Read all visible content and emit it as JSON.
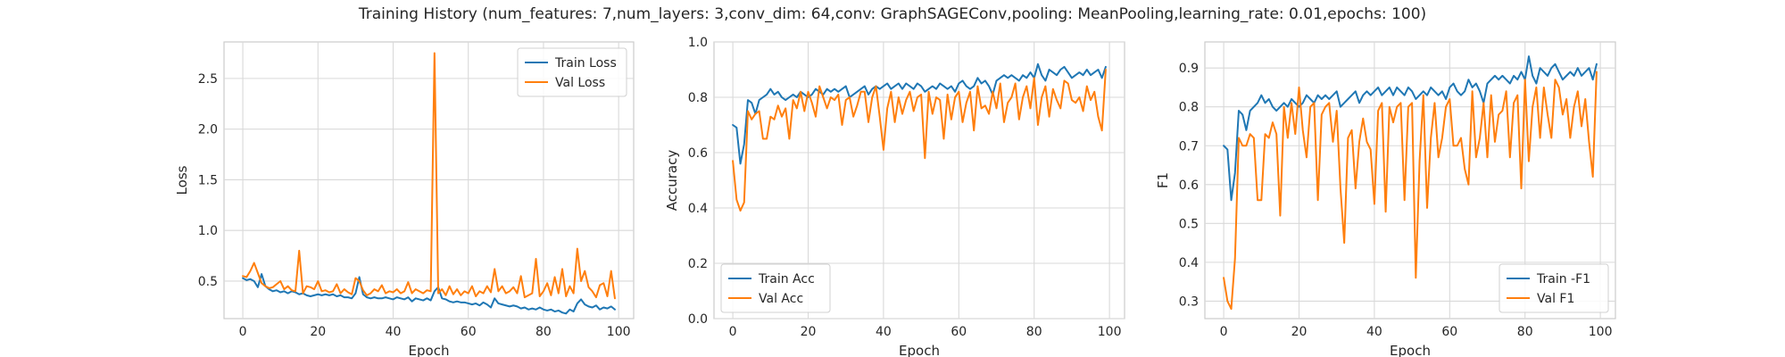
{
  "figure": {
    "title": "Training History (num_features: 7,num_layers: 3,conv_dim: 64,conv: GraphSAGEConv,pooling: MeanPooling,learning_rate: 0.01,epochs: 100)"
  },
  "chart_data": [
    {
      "type": "line",
      "xlabel": "Epoch",
      "ylabel": "Loss",
      "xlim": [
        -5,
        104
      ],
      "ylim": [
        0.13,
        2.86
      ],
      "xticks": [
        0,
        20,
        40,
        60,
        80,
        100
      ],
      "yticks": [
        0.5,
        1.0,
        1.5,
        2.0,
        2.5
      ],
      "ytick_labels": [
        "0.5",
        "1.0",
        "1.5",
        "2.0",
        "2.5"
      ],
      "grid": true,
      "legend_position": "upper-right",
      "x_start": 0,
      "series": [
        {
          "name": "Train Loss",
          "color": "#1f77b4",
          "values": [
            0.53,
            0.51,
            0.52,
            0.5,
            0.44,
            0.57,
            0.45,
            0.42,
            0.4,
            0.41,
            0.39,
            0.4,
            0.38,
            0.4,
            0.39,
            0.37,
            0.38,
            0.36,
            0.35,
            0.36,
            0.37,
            0.36,
            0.37,
            0.36,
            0.37,
            0.35,
            0.36,
            0.34,
            0.34,
            0.33,
            0.38,
            0.54,
            0.37,
            0.34,
            0.33,
            0.34,
            0.33,
            0.33,
            0.34,
            0.33,
            0.32,
            0.34,
            0.33,
            0.32,
            0.34,
            0.3,
            0.33,
            0.32,
            0.31,
            0.33,
            0.31,
            0.4,
            0.44,
            0.33,
            0.32,
            0.3,
            0.29,
            0.3,
            0.29,
            0.29,
            0.28,
            0.27,
            0.28,
            0.26,
            0.29,
            0.27,
            0.24,
            0.33,
            0.28,
            0.27,
            0.26,
            0.25,
            0.26,
            0.25,
            0.23,
            0.24,
            0.22,
            0.23,
            0.22,
            0.24,
            0.22,
            0.21,
            0.22,
            0.2,
            0.21,
            0.19,
            0.18,
            0.22,
            0.2,
            0.28,
            0.32,
            0.27,
            0.25,
            0.24,
            0.26,
            0.22,
            0.24,
            0.23,
            0.25,
            0.22
          ]
        },
        {
          "name": "Val Loss",
          "color": "#ff7f0e",
          "values": [
            0.55,
            0.54,
            0.6,
            0.68,
            0.58,
            0.48,
            0.45,
            0.43,
            0.44,
            0.47,
            0.5,
            0.42,
            0.45,
            0.41,
            0.4,
            0.8,
            0.38,
            0.45,
            0.44,
            0.42,
            0.5,
            0.4,
            0.41,
            0.39,
            0.4,
            0.47,
            0.38,
            0.42,
            0.39,
            0.37,
            0.53,
            0.5,
            0.41,
            0.36,
            0.38,
            0.42,
            0.4,
            0.46,
            0.38,
            0.4,
            0.39,
            0.42,
            0.38,
            0.4,
            0.49,
            0.38,
            0.42,
            0.4,
            0.38,
            0.41,
            0.4,
            2.75,
            0.38,
            0.42,
            0.36,
            0.45,
            0.37,
            0.42,
            0.36,
            0.4,
            0.38,
            0.45,
            0.35,
            0.4,
            0.38,
            0.45,
            0.39,
            0.62,
            0.4,
            0.45,
            0.38,
            0.4,
            0.44,
            0.38,
            0.55,
            0.34,
            0.36,
            0.38,
            0.72,
            0.35,
            0.4,
            0.48,
            0.36,
            0.54,
            0.38,
            0.62,
            0.35,
            0.45,
            0.38,
            0.82,
            0.5,
            0.6,
            0.44,
            0.4,
            0.34,
            0.46,
            0.48,
            0.35,
            0.6,
            0.33
          ]
        }
      ]
    },
    {
      "type": "line",
      "xlabel": "Epoch",
      "ylabel": "Accuracy",
      "xlim": [
        -5,
        104
      ],
      "ylim": [
        0.0,
        1.0
      ],
      "xticks": [
        0,
        20,
        40,
        60,
        80,
        100
      ],
      "yticks": [
        0.0,
        0.2,
        0.4,
        0.6,
        0.8,
        1.0
      ],
      "ytick_labels": [
        "0.0",
        "0.2",
        "0.4",
        "0.6",
        "0.8",
        "1.0"
      ],
      "grid": true,
      "legend_position": "lower-left",
      "x_start": 0,
      "series": [
        {
          "name": "Train Acc",
          "color": "#1f77b4",
          "values": [
            0.7,
            0.69,
            0.56,
            0.63,
            0.79,
            0.78,
            0.74,
            0.79,
            0.8,
            0.81,
            0.83,
            0.81,
            0.82,
            0.8,
            0.79,
            0.8,
            0.81,
            0.8,
            0.82,
            0.81,
            0.8,
            0.81,
            0.83,
            0.82,
            0.81,
            0.83,
            0.82,
            0.83,
            0.82,
            0.83,
            0.84,
            0.8,
            0.81,
            0.82,
            0.83,
            0.84,
            0.81,
            0.83,
            0.84,
            0.83,
            0.84,
            0.85,
            0.83,
            0.84,
            0.85,
            0.83,
            0.85,
            0.84,
            0.83,
            0.85,
            0.84,
            0.82,
            0.83,
            0.84,
            0.83,
            0.85,
            0.84,
            0.83,
            0.84,
            0.82,
            0.85,
            0.86,
            0.84,
            0.83,
            0.84,
            0.87,
            0.85,
            0.86,
            0.84,
            0.81,
            0.86,
            0.87,
            0.88,
            0.87,
            0.88,
            0.87,
            0.86,
            0.88,
            0.87,
            0.89,
            0.87,
            0.92,
            0.88,
            0.86,
            0.9,
            0.89,
            0.88,
            0.9,
            0.91,
            0.89,
            0.87,
            0.88,
            0.89,
            0.88,
            0.9,
            0.88,
            0.89,
            0.9,
            0.87,
            0.91
          ]
        },
        {
          "name": "Val Acc",
          "color": "#ff7f0e",
          "values": [
            0.57,
            0.43,
            0.39,
            0.42,
            0.75,
            0.72,
            0.74,
            0.75,
            0.65,
            0.65,
            0.73,
            0.72,
            0.77,
            0.73,
            0.76,
            0.65,
            0.79,
            0.76,
            0.82,
            0.75,
            0.82,
            0.78,
            0.73,
            0.84,
            0.8,
            0.76,
            0.8,
            0.79,
            0.81,
            0.7,
            0.79,
            0.8,
            0.73,
            0.77,
            0.82,
            0.82,
            0.71,
            0.8,
            0.84,
            0.73,
            0.61,
            0.76,
            0.82,
            0.71,
            0.8,
            0.74,
            0.79,
            0.82,
            0.75,
            0.8,
            0.81,
            0.58,
            0.82,
            0.74,
            0.8,
            0.79,
            0.65,
            0.81,
            0.72,
            0.8,
            0.82,
            0.71,
            0.78,
            0.82,
            0.68,
            0.84,
            0.76,
            0.77,
            0.74,
            0.82,
            0.76,
            0.85,
            0.71,
            0.78,
            0.8,
            0.85,
            0.72,
            0.8,
            0.84,
            0.76,
            0.87,
            0.7,
            0.8,
            0.84,
            0.73,
            0.83,
            0.79,
            0.76,
            0.86,
            0.85,
            0.79,
            0.78,
            0.8,
            0.75,
            0.84,
            0.79,
            0.82,
            0.73,
            0.68,
            0.9
          ]
        }
      ]
    },
    {
      "type": "line",
      "xlabel": "Epoch",
      "ylabel": "F1",
      "xlim": [
        -5,
        104
      ],
      "ylim": [
        0.255,
        0.967
      ],
      "xticks": [
        0,
        20,
        40,
        60,
        80,
        100
      ],
      "yticks": [
        0.3,
        0.4,
        0.5,
        0.6,
        0.7,
        0.8,
        0.9
      ],
      "ytick_labels": [
        "0.3",
        "0.4",
        "0.5",
        "0.6",
        "0.7",
        "0.8",
        "0.9"
      ],
      "grid": true,
      "legend_position": "lower-right",
      "x_start": 0,
      "series": [
        {
          "name": "Train -F1",
          "color": "#1f77b4",
          "values": [
            0.7,
            0.69,
            0.56,
            0.63,
            0.79,
            0.78,
            0.74,
            0.79,
            0.8,
            0.81,
            0.83,
            0.81,
            0.82,
            0.8,
            0.79,
            0.8,
            0.81,
            0.8,
            0.82,
            0.81,
            0.8,
            0.81,
            0.83,
            0.82,
            0.81,
            0.83,
            0.82,
            0.83,
            0.82,
            0.83,
            0.84,
            0.8,
            0.81,
            0.82,
            0.83,
            0.84,
            0.81,
            0.83,
            0.84,
            0.83,
            0.84,
            0.85,
            0.83,
            0.84,
            0.85,
            0.83,
            0.85,
            0.84,
            0.83,
            0.85,
            0.84,
            0.82,
            0.83,
            0.84,
            0.83,
            0.85,
            0.84,
            0.83,
            0.84,
            0.82,
            0.85,
            0.86,
            0.84,
            0.83,
            0.84,
            0.87,
            0.85,
            0.86,
            0.84,
            0.81,
            0.86,
            0.87,
            0.88,
            0.87,
            0.88,
            0.87,
            0.86,
            0.88,
            0.87,
            0.89,
            0.87,
            0.93,
            0.88,
            0.86,
            0.9,
            0.89,
            0.88,
            0.9,
            0.91,
            0.89,
            0.87,
            0.88,
            0.89,
            0.88,
            0.9,
            0.88,
            0.89,
            0.9,
            0.87,
            0.91
          ]
        },
        {
          "name": "Val F1",
          "color": "#ff7f0e",
          "values": [
            0.36,
            0.3,
            0.28,
            0.41,
            0.72,
            0.7,
            0.7,
            0.73,
            0.72,
            0.56,
            0.56,
            0.73,
            0.72,
            0.76,
            0.73,
            0.52,
            0.8,
            0.72,
            0.81,
            0.73,
            0.85,
            0.74,
            0.67,
            0.8,
            0.81,
            0.56,
            0.78,
            0.8,
            0.81,
            0.71,
            0.79,
            0.59,
            0.45,
            0.72,
            0.74,
            0.59,
            0.71,
            0.77,
            0.71,
            0.69,
            0.55,
            0.79,
            0.81,
            0.53,
            0.8,
            0.76,
            0.8,
            0.81,
            0.56,
            0.8,
            0.81,
            0.36,
            0.66,
            0.83,
            0.54,
            0.72,
            0.81,
            0.67,
            0.72,
            0.8,
            0.82,
            0.7,
            0.7,
            0.72,
            0.64,
            0.6,
            0.84,
            0.67,
            0.72,
            0.81,
            0.67,
            0.83,
            0.71,
            0.78,
            0.79,
            0.84,
            0.67,
            0.81,
            0.83,
            0.59,
            0.87,
            0.66,
            0.8,
            0.85,
            0.72,
            0.85,
            0.78,
            0.72,
            0.87,
            0.85,
            0.78,
            0.82,
            0.72,
            0.8,
            0.84,
            0.75,
            0.82,
            0.71,
            0.62,
            0.89
          ]
        }
      ]
    }
  ]
}
